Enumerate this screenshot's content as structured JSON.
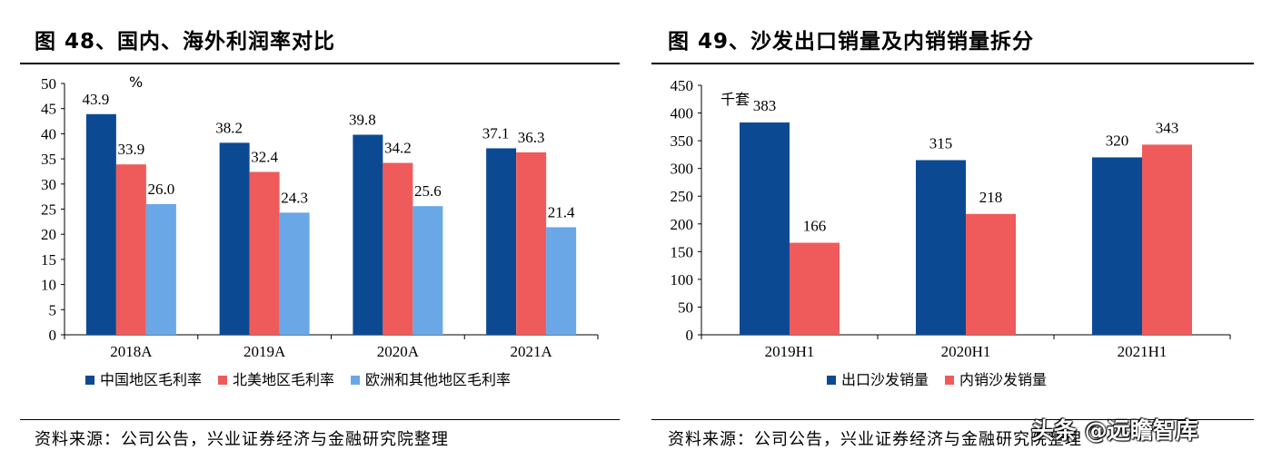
{
  "left_panel": {
    "title": "图 48、国内、海外利润率对比",
    "source": "资料来源：公司公告，兴业证券经济与金融研究院整理"
  },
  "right_panel": {
    "title": "图 49、沙发出口销量及内销销量拆分",
    "source": "资料来源：公司公告，兴业证券经济与金融研究院整理"
  },
  "watermark": "头条 @远瞻智库",
  "colors": {
    "dark_blue": "#0b4a93",
    "red": "#ef5b5b",
    "light_blue": "#6aa7e6"
  },
  "chart_data": [
    {
      "type": "bar",
      "title": "国内、海外利润率对比",
      "unit_label": "%",
      "categories": [
        "2018A",
        "2019A",
        "2020A",
        "2021A"
      ],
      "series": [
        {
          "name": "中国地区毛利率",
          "values": [
            43.9,
            38.2,
            39.8,
            37.1
          ],
          "labels": [
            "43.9",
            "38.2",
            "39.8",
            "37.1"
          ],
          "color": "#0b4a93"
        },
        {
          "name": "北美地区毛利率",
          "values": [
            33.9,
            32.4,
            34.2,
            36.3
          ],
          "labels": [
            "33.9",
            "32.4",
            "34.2",
            "36.3"
          ],
          "color": "#ef5b5b"
        },
        {
          "name": "欧洲和其他地区毛利率",
          "values": [
            26.0,
            24.3,
            25.6,
            21.4
          ],
          "labels": [
            "26.0",
            "24.3",
            "25.6",
            "21.4"
          ],
          "color": "#6aa7e6"
        }
      ],
      "ylim": [
        0,
        50
      ],
      "yticks": [
        0,
        5,
        10,
        15,
        20,
        25,
        30,
        35,
        40,
        45,
        50
      ],
      "ytick_labels": [
        "0",
        "5",
        "10",
        "15",
        "20",
        "25",
        "30",
        "35",
        "40",
        "45",
        "50"
      ],
      "legend_position": "bottom"
    },
    {
      "type": "bar",
      "title": "沙发出口销量及内销销量拆分",
      "unit_label": "千套",
      "categories": [
        "2019H1",
        "2020H1",
        "2021H1"
      ],
      "series": [
        {
          "name": "出口沙发销量",
          "values": [
            383,
            315,
            320
          ],
          "labels": [
            "383",
            "315",
            "320"
          ],
          "color": "#0b4a93"
        },
        {
          "name": "内销沙发销量",
          "values": [
            166,
            218,
            343
          ],
          "labels": [
            "166",
            "218",
            "343"
          ],
          "color": "#ef5b5b"
        }
      ],
      "ylim": [
        0,
        450
      ],
      "yticks": [
        0,
        50,
        100,
        150,
        200,
        250,
        300,
        350,
        400,
        450
      ],
      "ytick_labels": [
        "0",
        "50",
        "100",
        "150",
        "200",
        "250",
        "300",
        "350",
        "400",
        "450"
      ],
      "legend_position": "bottom"
    }
  ]
}
